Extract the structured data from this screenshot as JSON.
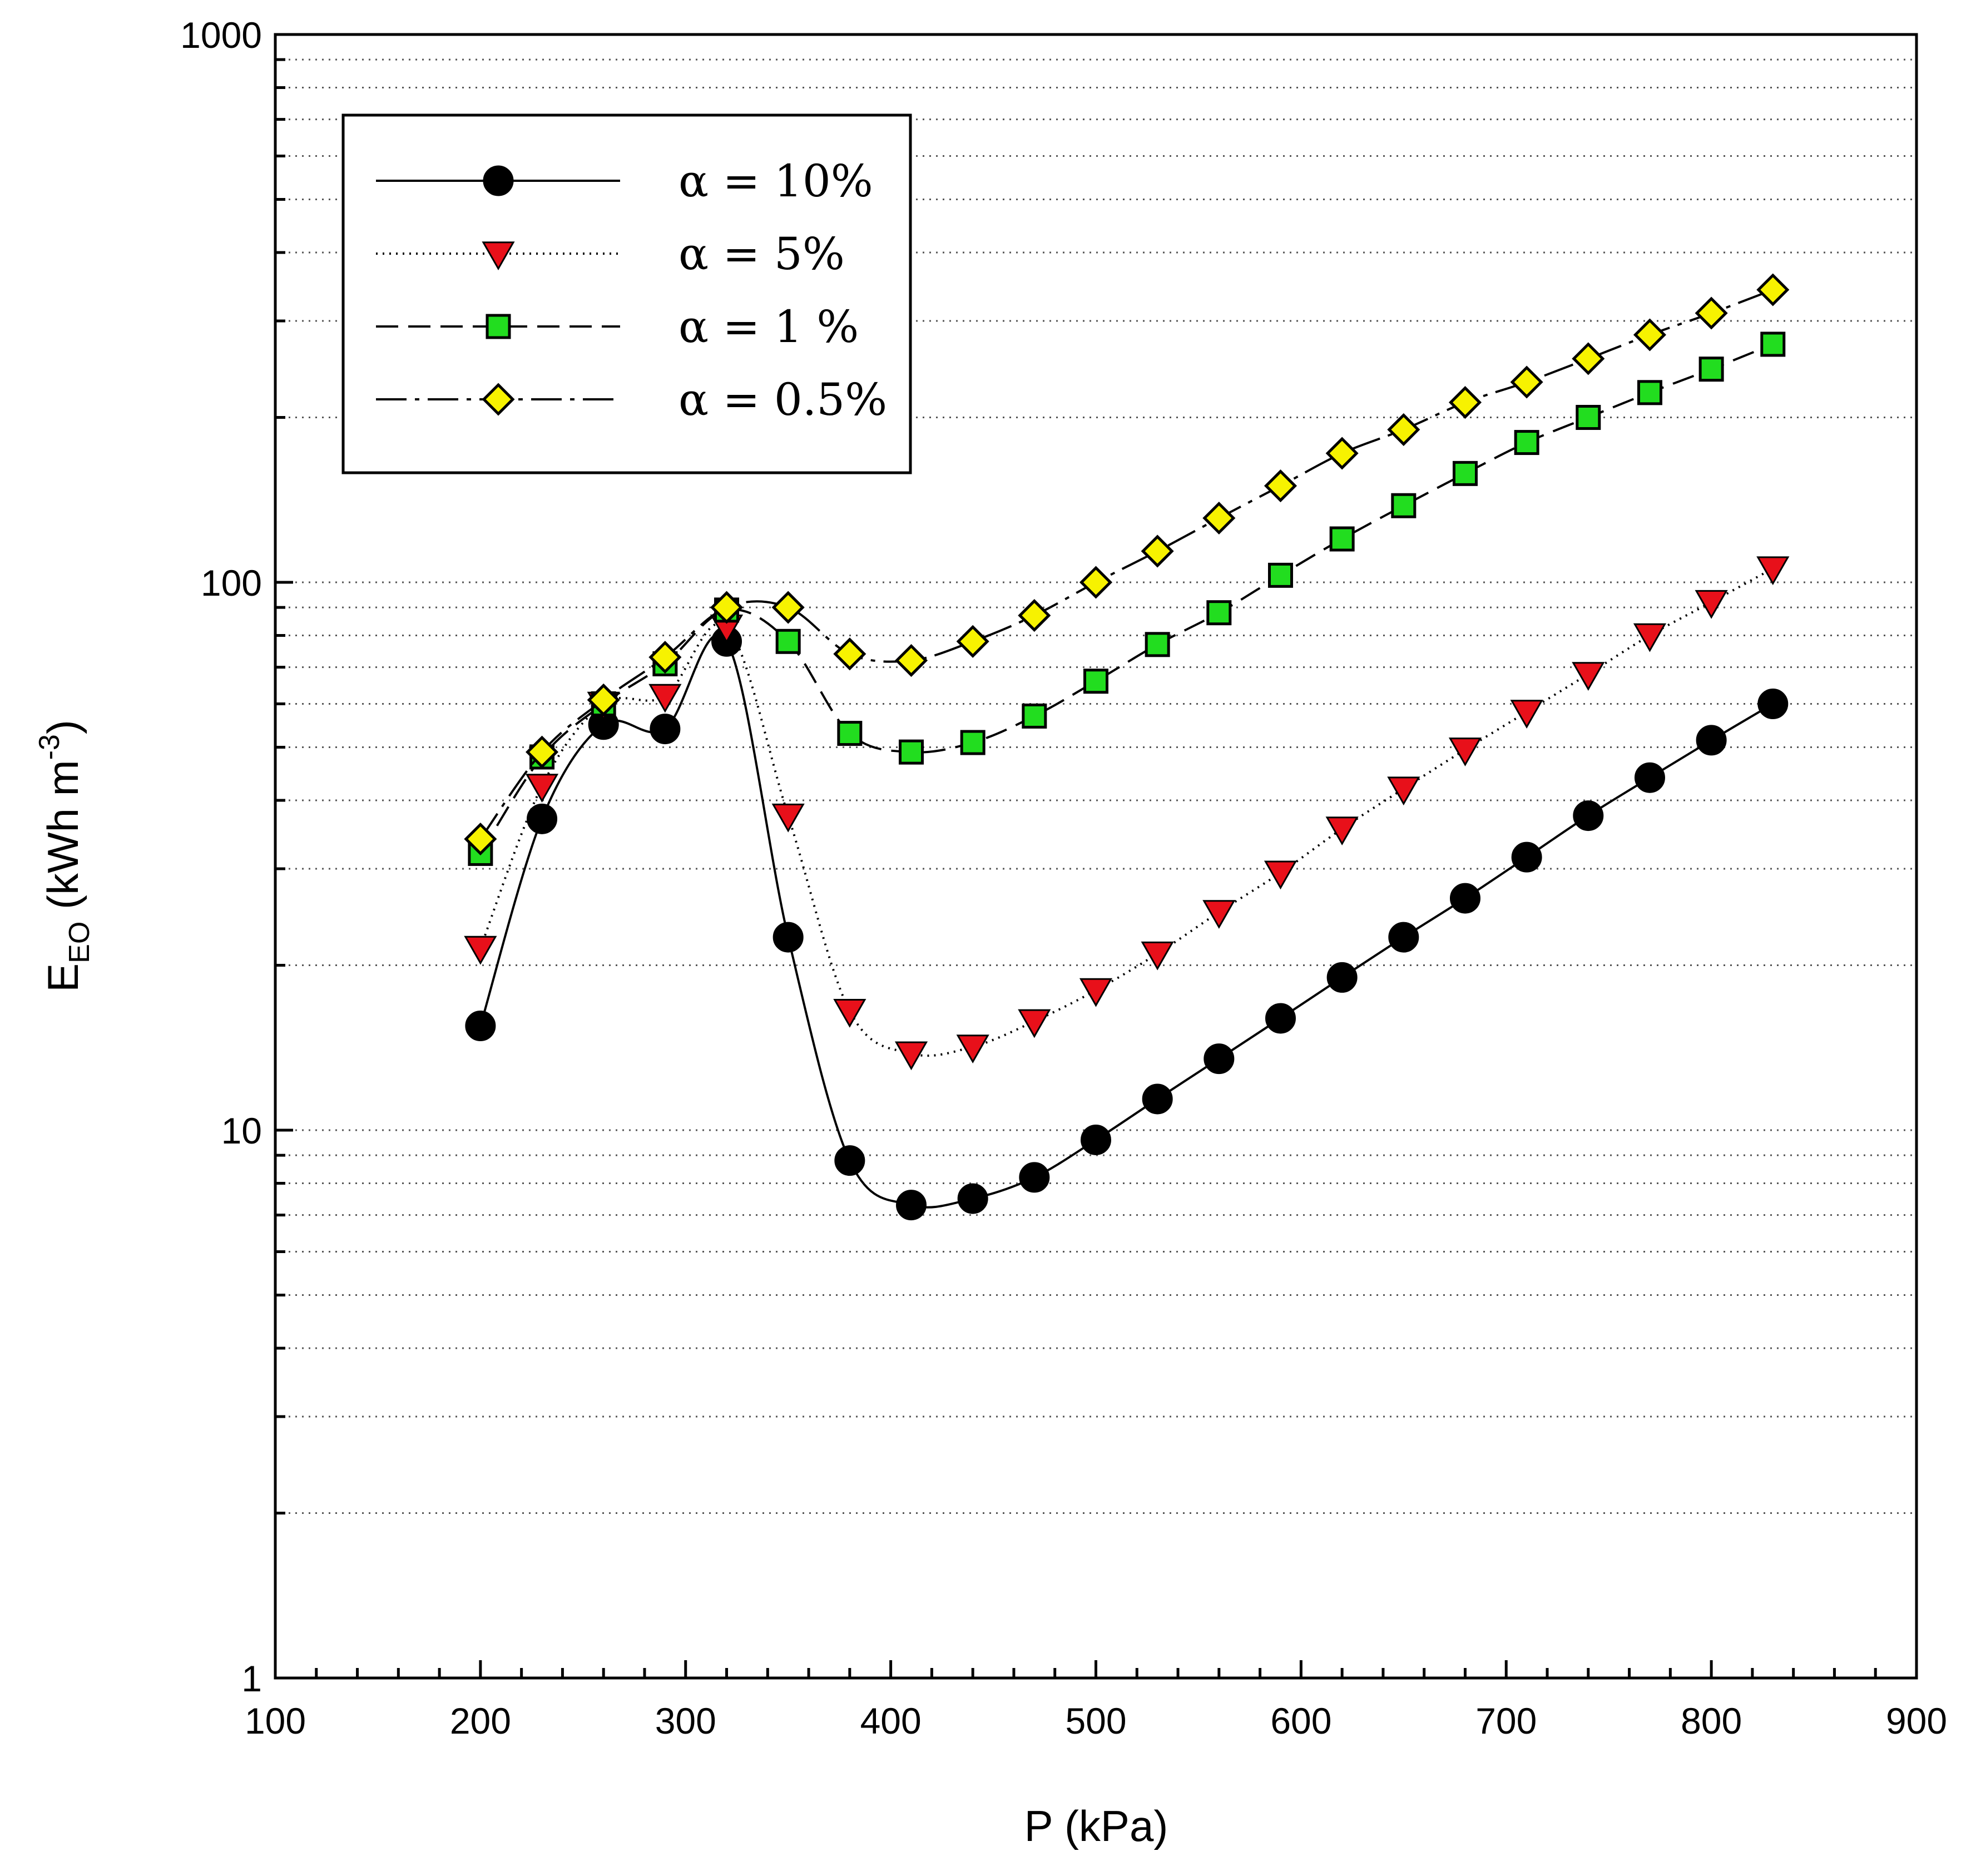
{
  "chart_data": {
    "type": "line",
    "title": "",
    "xlabel": "P (kPa)",
    "ylabel": {
      "base": "E",
      "subscript": "EO",
      "unit_open": " (kWh m",
      "superscript": "-3",
      "unit_close": ")"
    },
    "xlim": [
      100,
      900
    ],
    "ylim": [
      1,
      1000
    ],
    "yscale": "log",
    "grid": "horizontal dotted (log minor)",
    "legend_position": "top-left",
    "x_ticks": [
      "100",
      "200",
      "300",
      "400",
      "500",
      "600",
      "700",
      "800",
      "900"
    ],
    "y_ticks": [
      "1",
      "10",
      "100",
      "1000"
    ],
    "x": [
      200,
      230,
      260,
      290,
      320,
      350,
      380,
      410,
      440,
      470,
      500,
      530,
      560,
      590,
      620,
      650,
      680,
      710,
      740,
      770,
      800,
      830
    ],
    "series": [
      {
        "name": "α = 10%",
        "marker": "circle",
        "line_style": "solid",
        "color": "#000000",
        "values": [
          15.5,
          37,
          55,
          54,
          78,
          22.5,
          8.8,
          7.3,
          7.5,
          8.2,
          9.6,
          11.4,
          13.5,
          16,
          19,
          22.5,
          26.5,
          31.5,
          37.5,
          44,
          51.5,
          60
        ]
      },
      {
        "name": "α = 5%",
        "marker": "triangle-down",
        "line_style": "dotted",
        "color": "#e8101a",
        "values": [
          21.5,
          42.5,
          60,
          62,
          83,
          37.5,
          16.5,
          13.8,
          14.2,
          15.8,
          18,
          21,
          25,
          29.5,
          35.5,
          42,
          49.5,
          58,
          68,
          80,
          92,
          106
        ]
      },
      {
        "name": "α = 1 %",
        "marker": "square",
        "line_style": "dashed",
        "color": "#22dd1f",
        "values": [
          32,
          48,
          60,
          71,
          89,
          78,
          53,
          49,
          51,
          57,
          66,
          77,
          88,
          103,
          120,
          138,
          158,
          180,
          200,
          222,
          245,
          272
        ]
      },
      {
        "name": "α = 0.5%",
        "marker": "diamond",
        "line_style": "dash-dot",
        "color": "#f7f200",
        "values": [
          34,
          49,
          61,
          73,
          90,
          90,
          74,
          72,
          78,
          87,
          100,
          114,
          131,
          150,
          172,
          190,
          213,
          232,
          256,
          283,
          310,
          342
        ]
      }
    ]
  }
}
